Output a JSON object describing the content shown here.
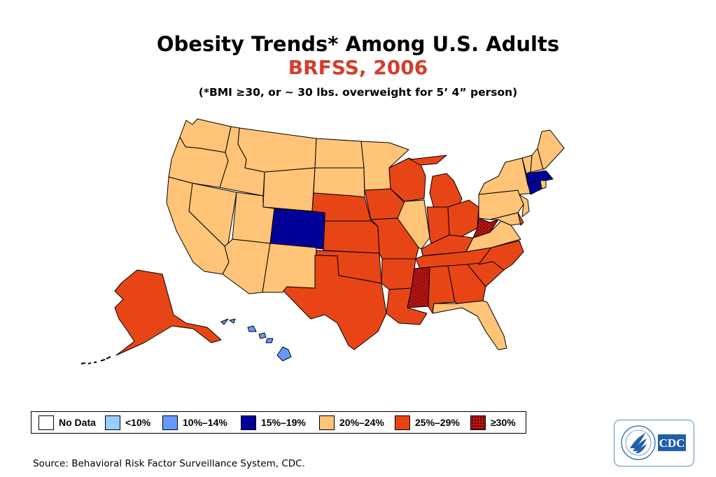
{
  "header": {
    "title": "Obesity Trends* Among U.S. Adults",
    "subtitle": "BRFSS, 2006",
    "note": "(*BMI ≥30, or ~ 30 lbs. overweight for 5’ 4” person)"
  },
  "colors": {
    "title": "#000000",
    "subtitle": "#d43d2a",
    "no_data": "#ffffff",
    "lt10": "#99ccff",
    "b10_14": "#6699ff",
    "b15_19": "#000099",
    "b20_24": "#ffc477",
    "b25_29": "#e84516",
    "ge30": "#b81414",
    "cdc_blue": "#1f5fae"
  },
  "legend": {
    "items": [
      {
        "label": "No Data",
        "key": "no_data"
      },
      {
        "label": "<10%",
        "key": "lt10"
      },
      {
        "label": "10%–14%",
        "key": "b10_14"
      },
      {
        "label": "15%–19%",
        "key": "b15_19"
      },
      {
        "label": "20%–24%",
        "key": "b20_24"
      },
      {
        "label": "25%–29%",
        "key": "b25_29"
      },
      {
        "label": "≥30%",
        "key": "ge30"
      }
    ]
  },
  "states": {
    "WA": "b20_24",
    "OR": "b20_24",
    "CA": "b20_24",
    "ID": "b20_24",
    "NV": "b20_24",
    "MT": "b20_24",
    "WY": "b20_24",
    "UT": "b20_24",
    "AZ": "b20_24",
    "NM": "b20_24",
    "CO": "b15_19",
    "ND": "b20_24",
    "SD": "b20_24",
    "NE": "b25_29",
    "KS": "b25_29",
    "OK": "b25_29",
    "TX": "b25_29",
    "MN": "b20_24",
    "IA": "b25_29",
    "MO": "b25_29",
    "AR": "b25_29",
    "LA": "b25_29",
    "WI": "b25_29",
    "IL": "b20_24",
    "MI": "b25_29",
    "IN": "b25_29",
    "OH": "b25_29",
    "KY": "b25_29",
    "TN": "b25_29",
    "MS": "ge30",
    "AL": "b25_29",
    "GA": "b25_29",
    "FL": "b20_24",
    "SC": "b25_29",
    "NC": "b25_29",
    "VA": "b20_24",
    "WV": "ge30",
    "PA": "b20_24",
    "NY": "b20_24",
    "NJ": "b20_24",
    "DE": "b25_29",
    "MD": "b20_24",
    "CT": "b15_19",
    "RI": "b20_24",
    "MA": "b15_19",
    "VT": "b20_24",
    "NH": "b20_24",
    "ME": "b20_24",
    "AK": "b25_29",
    "HI": "b10_14"
  },
  "footer": {
    "source": "Source: Behavioral Risk Factor Surveillance System, CDC.",
    "logo_text": "CDC",
    "logo_icon": "hhs-eagle-icon"
  }
}
